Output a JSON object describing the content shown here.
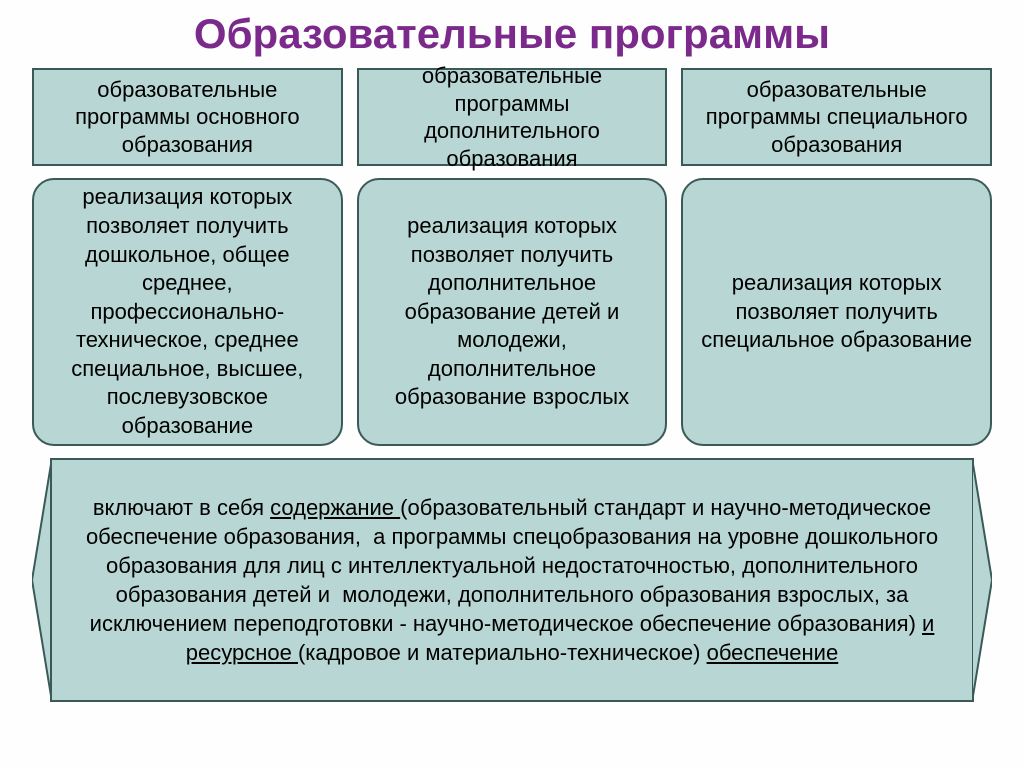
{
  "title": {
    "text": "Образовательные программы",
    "fontsize": 42
  },
  "colors": {
    "box_fill": "#b8d6d3",
    "box_border": "#3a5a57",
    "title": "#7b2a8c",
    "text": "#000000",
    "bg": "#fefefe"
  },
  "font": {
    "header_size": 22,
    "desc_size": 22,
    "bottom_size": 22
  },
  "columns": [
    {
      "header": "образовательные программы\nосновного образования",
      "desc": "реализация которых позволяет получить дошкольное, общее среднее, профессионально-техническое, среднее специальное, высшее, послевузовское образование"
    },
    {
      "header": "образовательные программы дополнительного образования",
      "desc": "реализация которых позволяет получить дополнительное образование детей и молодежи, дополнительное образование взрослых"
    },
    {
      "header": "образовательные программы специального образования",
      "desc": "реализация которых позволяет получить специальное образование"
    }
  ],
  "bottom": {
    "segments": [
      {
        "t": "включают в себя ",
        "u": false
      },
      {
        "t": "содержание ",
        "u": true
      },
      {
        "t": "(образовательный стандарт и научно-методическое обеспечение образования,  а программы спецобразования на уровне дошкольного образования для лиц с интеллектуальной недостаточностью, дополнительного образования детей и  молодежи, дополнительного образования взрослых, за исключением переподготовки - научно-методическое обеспечение образования) ",
        "u": false
      },
      {
        "t": "и ресурсное ",
        "u": true
      },
      {
        "t": "(кадровое и материально-техническое) ",
        "u": false
      },
      {
        "t": "обеспечение",
        "u": true
      }
    ]
  }
}
